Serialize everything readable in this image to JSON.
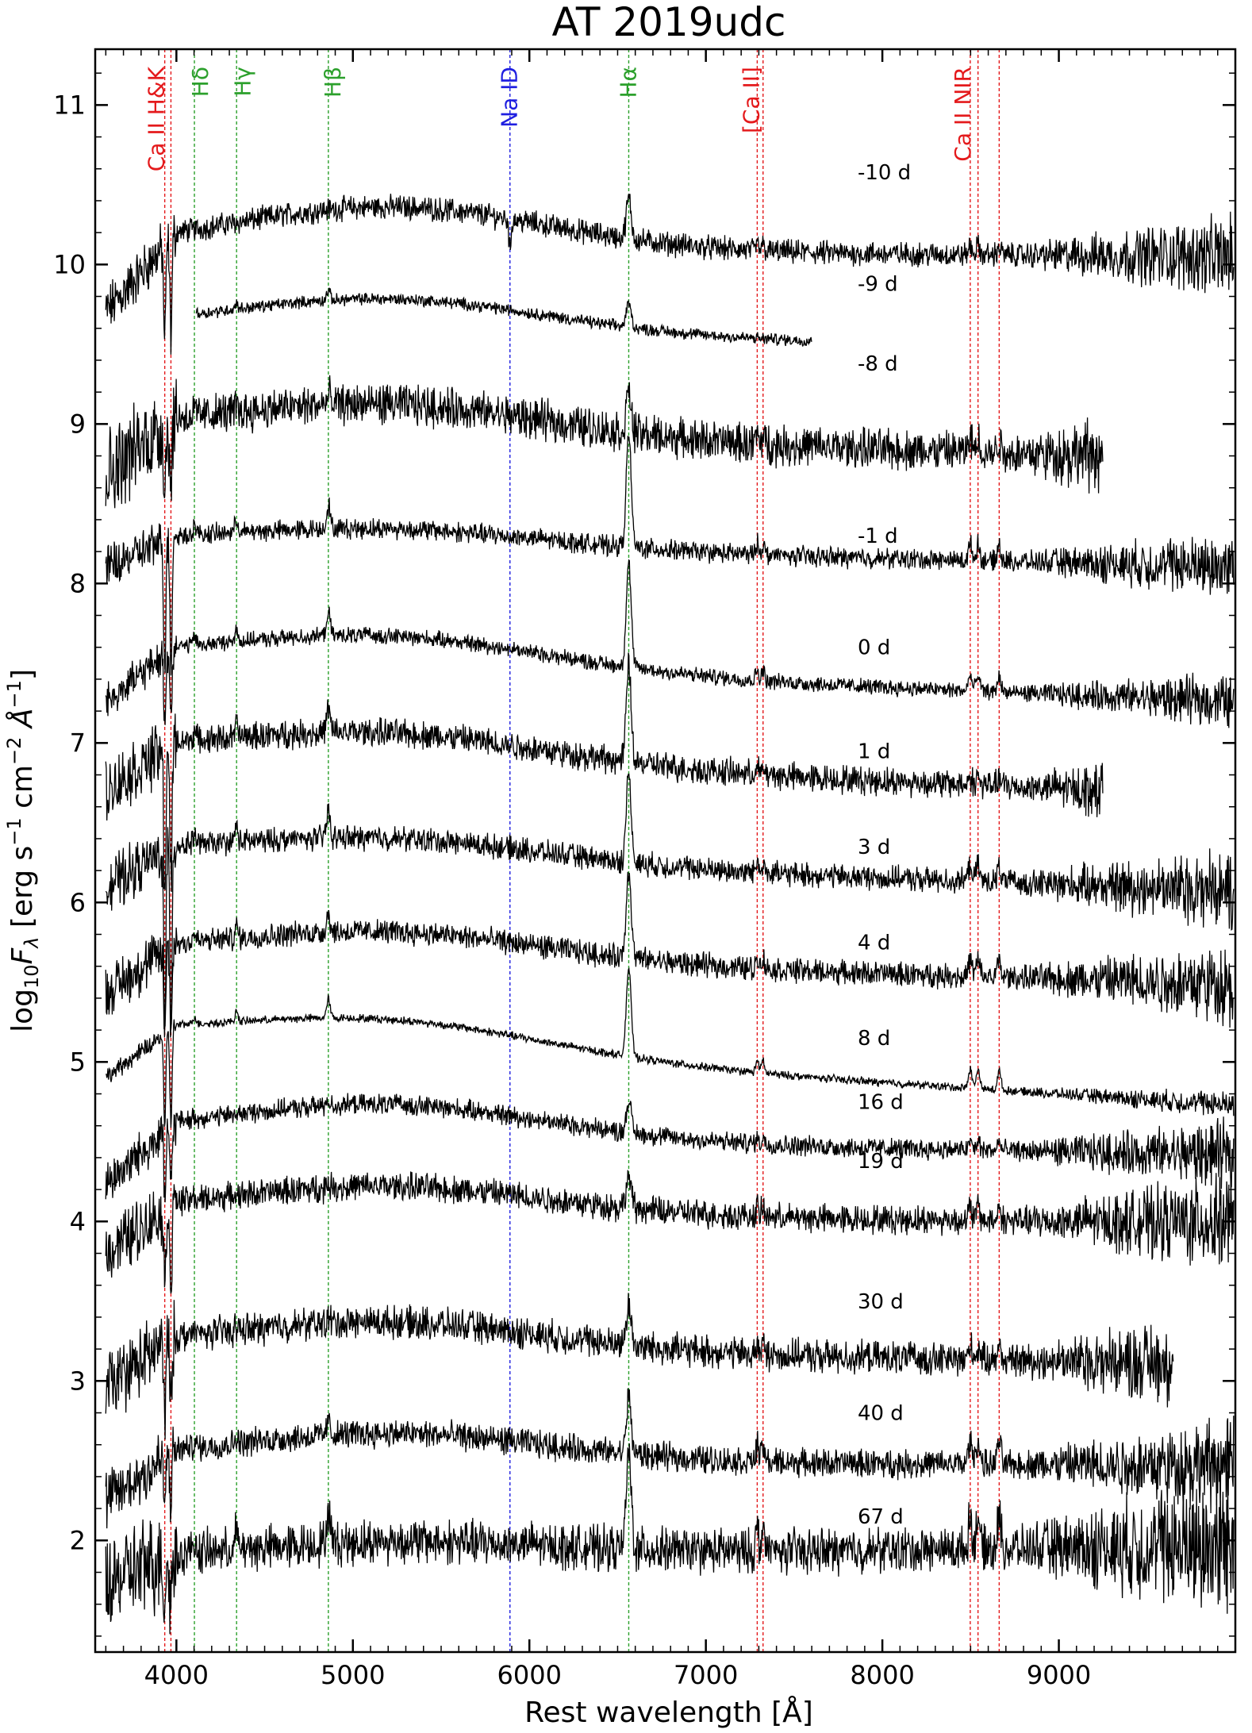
{
  "chart_data": {
    "type": "line",
    "title": "AT 2019udc",
    "xlabel": "Rest wavelength [Å]",
    "ylabel_parts": {
      "prefix": "log",
      "sub1": "10",
      "var": "F",
      "sub2": "λ",
      "units_a": " [erg s",
      "sup1": "−1",
      "units_b": " cm",
      "sup2": "−2",
      "units_c": " Å",
      "sup3": "−1",
      "units_d": "]"
    },
    "xlim": [
      3540,
      10000
    ],
    "ylim": [
      1.3,
      11.35
    ],
    "x_ticks": [
      4000,
      5000,
      6000,
      7000,
      8000,
      9000
    ],
    "y_ticks": [
      2,
      3,
      4,
      5,
      6,
      7,
      8,
      9,
      10,
      11
    ],
    "grid": false,
    "line_markers": [
      {
        "label": "Ca II H&K",
        "color": "#e41a1c",
        "wavelengths": [
          3934,
          3969
        ],
        "label_at": 3880
      },
      {
        "label": "Hδ",
        "color": "#2ca02c",
        "wavelengths": [
          4102
        ],
        "label_at": 4130
      },
      {
        "label": "Hγ",
        "color": "#2ca02c",
        "wavelengths": [
          4341
        ],
        "label_at": 4370
      },
      {
        "label": "Hβ",
        "color": "#2ca02c",
        "wavelengths": [
          4861
        ],
        "label_at": 4880
      },
      {
        "label": "Na ID",
        "color": "#1f1fe0",
        "wavelengths": [
          5890
        ],
        "label_at": 5880
      },
      {
        "label": "Hα",
        "color": "#2ca02c",
        "wavelengths": [
          6563
        ],
        "label_at": 6555
      },
      {
        "label": "[Ca II]",
        "color": "#e41a1c",
        "wavelengths": [
          7291,
          7324
        ],
        "label_at": 7250
      },
      {
        "label": "Ca II NIR",
        "color": "#e41a1c",
        "wavelengths": [
          8498,
          8542,
          8662
        ],
        "label_at": 8450
      }
    ],
    "series": [
      {
        "name": "-10 d",
        "label_x": 7860,
        "label_y": 10.58,
        "xmin": 3600,
        "xmax": 9990,
        "c": 10.25,
        "bump": 0.28,
        "slope": -0.03,
        "noise": 0.06,
        "ha": 0.25,
        "hb": 0.0,
        "cahk": 0.6,
        "nir": 0.05,
        "na": 0.2
      },
      {
        "name": "-9 d",
        "label_x": 7860,
        "label_y": 9.88,
        "xmin": 4110,
        "xmax": 7600,
        "c": 9.7,
        "bump": 0.22,
        "slope": -0.1,
        "noise": 0.03,
        "ha": 0.15,
        "hb": 0.06,
        "cahk": 0.0,
        "nir": 0.0,
        "na": 0.0
      },
      {
        "name": "-8 d",
        "label_x": 7860,
        "label_y": 9.38,
        "xmin": 3600,
        "xmax": 9250,
        "c": 9.05,
        "bump": 0.2,
        "slope": -0.15,
        "noise": 0.1,
        "ha": 0.25,
        "hb": 0.05,
        "cahk": 0.4,
        "nir": 0.08,
        "na": 0.0
      },
      {
        "name": "-1 d",
        "label_x": 7860,
        "label_y": 8.3,
        "xmin": 3600,
        "xmax": 9990,
        "c": 8.3,
        "bump": 0.12,
        "slope": -0.12,
        "noise": 0.05,
        "ha": 0.7,
        "hb": 0.15,
        "cahk": 0.8,
        "nir": 0.1,
        "na": 0.0
      },
      {
        "name": "0 d",
        "label_x": 7860,
        "label_y": 7.6,
        "xmin": 3600,
        "xmax": 9990,
        "c": 7.6,
        "bump": 0.2,
        "slope": -0.22,
        "noise": 0.04,
        "ha": 0.65,
        "hb": 0.15,
        "cahk": 0.4,
        "nir": 0.1,
        "na": 0.0
      },
      {
        "name": "1 d",
        "label_x": 7860,
        "label_y": 6.95,
        "xmin": 3600,
        "xmax": 9250,
        "c": 7.0,
        "bump": 0.18,
        "slope": -0.22,
        "noise": 0.07,
        "ha": 0.6,
        "hb": 0.15,
        "cahk": 0.9,
        "nir": 0.05,
        "na": 0.0
      },
      {
        "name": "3 d",
        "label_x": 7860,
        "label_y": 6.35,
        "xmin": 3600,
        "xmax": 9990,
        "c": 6.35,
        "bump": 0.15,
        "slope": -0.18,
        "noise": 0.06,
        "ha": 0.55,
        "hb": 0.18,
        "cahk": 1.1,
        "nir": 0.1,
        "na": 0.0
      },
      {
        "name": "4 d",
        "label_x": 7860,
        "label_y": 5.75,
        "xmin": 3600,
        "xmax": 9990,
        "c": 5.75,
        "bump": 0.18,
        "slope": -0.15,
        "noise": 0.06,
        "ha": 0.55,
        "hb": 0.12,
        "cahk": 0.5,
        "nir": 0.1,
        "na": 0.0
      },
      {
        "name": "8 d",
        "label_x": 7860,
        "label_y": 5.15,
        "xmin": 3600,
        "xmax": 9990,
        "c": 5.2,
        "bump": 0.2,
        "slope": -0.35,
        "noise": 0.02,
        "ha": 0.55,
        "hb": 0.12,
        "cahk": 0.6,
        "nir": 0.12,
        "na": 0.0
      },
      {
        "name": "16 d",
        "label_x": 7860,
        "label_y": 4.75,
        "xmin": 3600,
        "xmax": 9990,
        "c": 4.65,
        "bump": 0.22,
        "slope": -0.1,
        "noise": 0.05,
        "ha": 0.2,
        "hb": 0.03,
        "cahk": 0.4,
        "nir": 0.05,
        "na": 0.0
      },
      {
        "name": "19 d",
        "label_x": 7860,
        "label_y": 4.38,
        "xmin": 3600,
        "xmax": 9990,
        "c": 4.15,
        "bump": 0.18,
        "slope": -0.05,
        "noise": 0.07,
        "ha": 0.2,
        "hb": 0.03,
        "cahk": 0.5,
        "nir": 0.08,
        "na": 0.0
      },
      {
        "name": "30 d",
        "label_x": 7860,
        "label_y": 3.5,
        "xmin": 3600,
        "xmax": 9650,
        "c": 3.3,
        "bump": 0.18,
        "slope": -0.08,
        "noise": 0.08,
        "ha": 0.25,
        "hb": 0.03,
        "cahk": 0.4,
        "nir": 0.08,
        "na": 0.0
      },
      {
        "name": "40 d",
        "label_x": 7860,
        "label_y": 2.8,
        "xmin": 3600,
        "xmax": 9990,
        "c": 2.6,
        "bump": 0.18,
        "slope": -0.02,
        "noise": 0.07,
        "ha": 0.35,
        "hb": 0.08,
        "cahk": 0.3,
        "nir": 0.15,
        "na": 0.0
      },
      {
        "name": "67 d",
        "label_x": 7860,
        "label_y": 2.15,
        "xmin": 3600,
        "xmax": 9990,
        "c": 1.95,
        "bump": 0.1,
        "slope": 0.08,
        "noise": 0.11,
        "ha": 0.6,
        "hb": 0.2,
        "cahk": 0.3,
        "nir": 0.2,
        "na": 0.0
      }
    ]
  }
}
